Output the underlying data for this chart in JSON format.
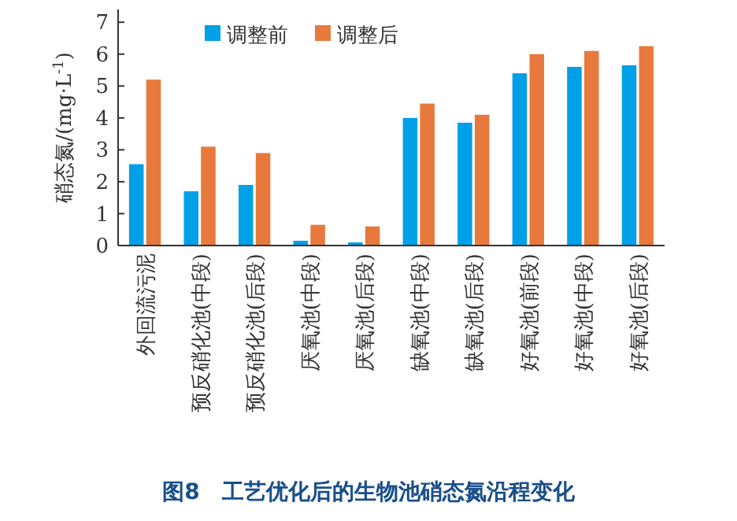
{
  "chart_data": {
    "type": "bar",
    "title": "图8　工艺优化后的生物池硝态氮沿程变化",
    "ylabel": "硝态氮/(mg·L$^{-1}$)",
    "categories": [
      "外回流污泥",
      "预反硝化池(中段)",
      "预反硝化池(后段)",
      "厌氧池(中段)",
      "厌氧池(后段)",
      "缺氧池(中段)",
      "缺氧池(后段)",
      "好氧池(前段)",
      "好氧池(中段)",
      "好氧池(后段)"
    ],
    "series": [
      {
        "name": "调整前",
        "color": "#00a0e9",
        "values": [
          2.55,
          1.7,
          1.9,
          0.15,
          0.1,
          4.0,
          3.85,
          5.4,
          5.6,
          5.65
        ]
      },
      {
        "name": "调整后",
        "color": "#e8793c",
        "values": [
          5.2,
          3.1,
          2.9,
          0.65,
          0.6,
          4.45,
          4.1,
          6.0,
          6.1,
          6.25
        ]
      }
    ],
    "ylim": [
      0,
      7.4
    ],
    "yticks": [
      0,
      1,
      2,
      3,
      4,
      5,
      6,
      7
    ],
    "legend": "top",
    "grid": false
  }
}
